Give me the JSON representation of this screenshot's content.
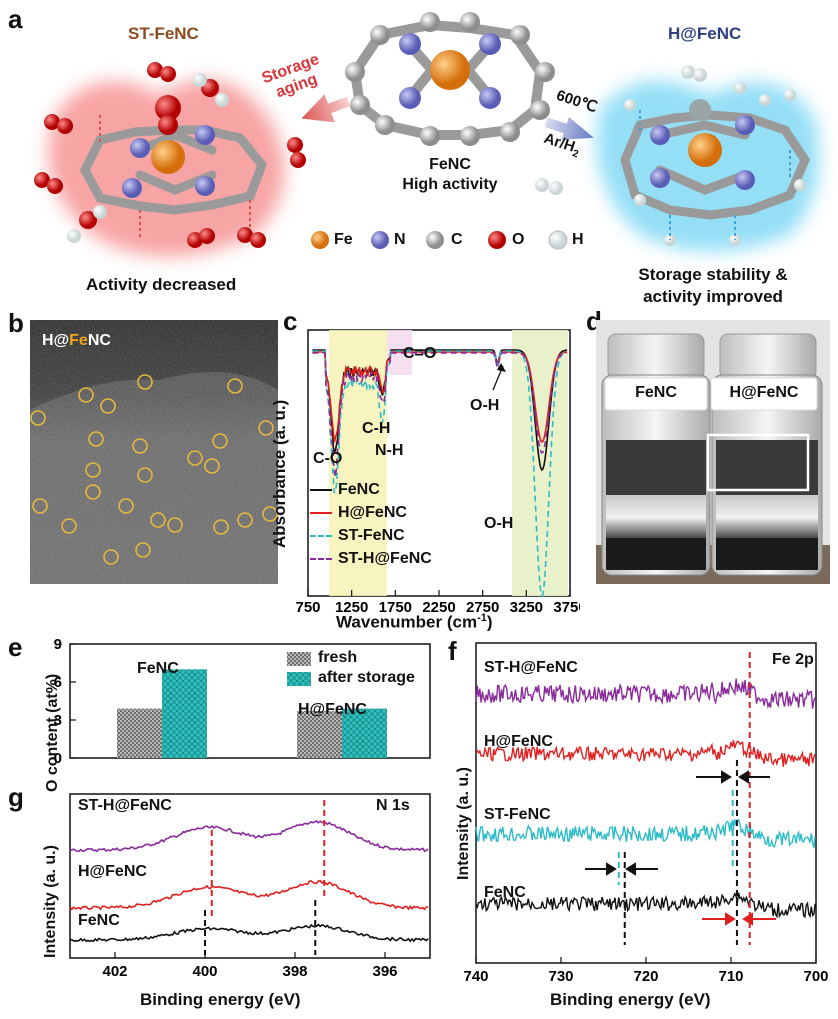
{
  "panel_labels": {
    "a": "a",
    "b": "b",
    "c": "c",
    "d": "d",
    "e": "e",
    "f": "f",
    "g": "g"
  },
  "panel_a": {
    "left_title": "ST-FeNC",
    "center_title": "FeNC",
    "center_subtitle": "High activity",
    "right_title": "H@FeNC",
    "storage_label_1": "Storage",
    "storage_label_2": "aging",
    "temp_label": "600℃",
    "gas_label": "Ar/H",
    "gas_sub": "2",
    "left_caption": "Activity decreased",
    "right_caption_1": "Storage stability &",
    "right_caption_2": "activity improved",
    "legend": [
      {
        "label": "Fe",
        "color": "#e6851c"
      },
      {
        "label": "N",
        "color": "#7c7fcf"
      },
      {
        "label": "C",
        "color": "#b7b7b7"
      },
      {
        "label": "O",
        "color": "#e01a1a"
      },
      {
        "label": "H",
        "color": "#eaf4f4"
      }
    ],
    "colors": {
      "st_title": "#8b4a1e",
      "h_title": "#2d3f7c",
      "red_glow": "#f25a5a",
      "blue_glow": "#3cc4f0"
    }
  },
  "panel_b": {
    "label_prefix": "H@",
    "label_fe": "Fe",
    "label_suffix": "NC"
  },
  "panel_c": {
    "type": "line",
    "xlabel": "Wavenumber (cm",
    "xlabel_sup": "-1",
    "xlabel_end": ")",
    "ylabel": "Absorbance (a. u.)",
    "xticks": [
      "750",
      "1250",
      "1750",
      "2250",
      "2750",
      "3250",
      "3750"
    ],
    "annotations": [
      "C-O",
      "C-H",
      "N-H",
      "C=O",
      "O-H",
      "O-H"
    ],
    "series": [
      {
        "name": "FeNC",
        "color": "#111111",
        "dash": "solid"
      },
      {
        "name": "H@FeNC",
        "color": "#e0201f",
        "dash": "solid"
      },
      {
        "name": "ST-FeNC",
        "color": "#2bbcc8",
        "dash": "dashed"
      },
      {
        "name": "ST-H@FeNC",
        "color": "#8a2b9c",
        "dash": "dashed"
      }
    ]
  },
  "panel_d": {
    "left": "FeNC",
    "right": "H@FeNC"
  },
  "chart_data": [
    {
      "type": "bar",
      "ylabel": "O content (at%)",
      "yticks": [
        "0",
        "3",
        "6",
        "9"
      ],
      "ylim": [
        0,
        9
      ],
      "categories": [
        "FeNC",
        "H@FeNC"
      ],
      "series": [
        {
          "name": "fresh",
          "values": [
            3.9,
            3.7
          ],
          "color": "#9a9a9a"
        },
        {
          "name": "after storage",
          "values": [
            7.0,
            3.9
          ],
          "color": "#2fc2c0"
        }
      ]
    },
    {
      "type": "line",
      "title": "Fe 2p",
      "xlabel": "Binding energy (eV)",
      "ylabel": "Intensity (a. u.)",
      "xticks": [
        "740",
        "730",
        "720",
        "710",
        "700"
      ],
      "xlim": [
        740,
        700
      ],
      "series": [
        {
          "name": "ST-H@FeNC",
          "color": "#8a2b9c"
        },
        {
          "name": "H@FeNC",
          "color": "#e0201f"
        },
        {
          "name": "ST-FeNC",
          "color": "#2bbcc8"
        },
        {
          "name": "FeNC",
          "color": "#111111"
        }
      ]
    },
    {
      "type": "line",
      "title": "N 1s",
      "xlabel": "Binding energy (eV)",
      "ylabel": "Intensity (a. u.)",
      "xticks": [
        "402",
        "400",
        "398",
        "396"
      ],
      "xlim": [
        403,
        395
      ],
      "series": [
        {
          "name": "ST-H@FeNC",
          "color": "#8a2b9c"
        },
        {
          "name": "H@FeNC",
          "color": "#e0201f"
        },
        {
          "name": "FeNC",
          "color": "#111111"
        }
      ]
    }
  ]
}
